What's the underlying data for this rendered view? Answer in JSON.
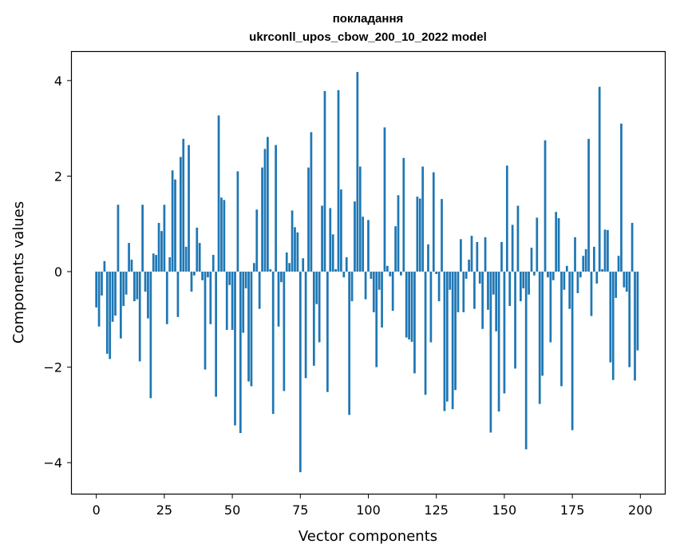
{
  "chart_data": {
    "type": "bar",
    "title": [
      "покладання",
      "ukrconll_upos_cbow_200_10_2022 model"
    ],
    "xlabel": "Vector components",
    "ylabel": "Components values",
    "xlim": [
      -9,
      209
    ],
    "ylim": [
      -4.65,
      4.6
    ],
    "xticks": [
      0,
      25,
      50,
      75,
      100,
      125,
      150,
      175,
      200
    ],
    "yticks": [
      -4,
      -2,
      0,
      2,
      4
    ],
    "ytick_labels": [
      "−4",
      "−2",
      "0",
      "2",
      "4"
    ],
    "grid": false,
    "legend": "none",
    "bar_color": "#1f77b4",
    "x": [
      0,
      1,
      2,
      3,
      4,
      5,
      6,
      7,
      8,
      9,
      10,
      11,
      12,
      13,
      14,
      15,
      16,
      17,
      18,
      19,
      20,
      21,
      22,
      23,
      24,
      25,
      26,
      27,
      28,
      29,
      30,
      31,
      32,
      33,
      34,
      35,
      36,
      37,
      38,
      39,
      40,
      41,
      42,
      43,
      44,
      45,
      46,
      47,
      48,
      49,
      50,
      51,
      52,
      53,
      54,
      55,
      56,
      57,
      58,
      59,
      60,
      61,
      62,
      63,
      64,
      65,
      66,
      67,
      68,
      69,
      70,
      71,
      72,
      73,
      74,
      75,
      76,
      77,
      78,
      79,
      80,
      81,
      82,
      83,
      84,
      85,
      86,
      87,
      88,
      89,
      90,
      91,
      92,
      93,
      94,
      95,
      96,
      97,
      98,
      99,
      100,
      101,
      102,
      103,
      104,
      105,
      106,
      107,
      108,
      109,
      110,
      111,
      112,
      113,
      114,
      115,
      116,
      117,
      118,
      119,
      120,
      121,
      122,
      123,
      124,
      125,
      126,
      127,
      128,
      129,
      130,
      131,
      132,
      133,
      134,
      135,
      136,
      137,
      138,
      139,
      140,
      141,
      142,
      143,
      144,
      145,
      146,
      147,
      148,
      149,
      150,
      151,
      152,
      153,
      154,
      155,
      156,
      157,
      158,
      159,
      160,
      161,
      162,
      163,
      164,
      165,
      166,
      167,
      168,
      169,
      170,
      171,
      172,
      173,
      174,
      175,
      176,
      177,
      178,
      179,
      180,
      181,
      182,
      183,
      184,
      185,
      186,
      187,
      188,
      189,
      190,
      191,
      192,
      193,
      194,
      195,
      196,
      197,
      198,
      199
    ],
    "values": [
      -0.75,
      -1.15,
      -0.5,
      0.22,
      -1.72,
      -1.83,
      -1.05,
      -0.92,
      1.4,
      -1.4,
      -0.72,
      -0.48,
      0.6,
      0.25,
      -0.62,
      -0.58,
      -1.88,
      1.4,
      -0.42,
      -0.98,
      -2.65,
      0.38,
      0.35,
      1.02,
      0.85,
      1.4,
      -1.1,
      0.3,
      2.12,
      1.93,
      -0.95,
      2.4,
      2.78,
      0.52,
      2.65,
      -0.42,
      -0.08,
      0.92,
      0.6,
      -0.18,
      -2.05,
      -0.12,
      -1.1,
      0.35,
      -2.62,
      3.27,
      1.55,
      1.5,
      -1.22,
      -0.28,
      -1.22,
      -3.22,
      2.1,
      -3.38,
      -1.28,
      -0.35,
      -2.3,
      -2.4,
      0.18,
      1.3,
      -0.78,
      2.18,
      2.57,
      2.82,
      0.05,
      -2.98,
      2.65,
      -1.15,
      -0.22,
      -2.5,
      0.4,
      0.18,
      1.28,
      0.93,
      0.82,
      -4.2,
      0.28,
      -2.23,
      2.18,
      2.92,
      -1.97,
      -0.68,
      -1.48,
      1.38,
      3.78,
      -2.52,
      1.33,
      0.78,
      0.05,
      3.8,
      1.72,
      -0.12,
      0.3,
      -3.0,
      -0.62,
      1.47,
      4.18,
      2.2,
      1.15,
      -0.58,
      1.08,
      -0.15,
      -0.85,
      -2.0,
      -0.38,
      -1.17,
      3.02,
      0.12,
      -0.1,
      -0.82,
      0.95,
      1.6,
      -0.08,
      2.38,
      -1.38,
      -1.42,
      -1.47,
      -2.13,
      1.57,
      1.53,
      2.2,
      -2.58,
      0.57,
      -1.48,
      2.08,
      -0.05,
      -0.62,
      1.52,
      -2.92,
      -2.72,
      -0.38,
      -2.88,
      -2.48,
      -0.85,
      0.68,
      -0.85,
      -0.15,
      0.25,
      0.75,
      -0.78,
      0.62,
      -0.25,
      -1.2,
      0.72,
      -0.8,
      -3.37,
      -0.48,
      -1.25,
      -2.93,
      0.62,
      -2.55,
      2.22,
      -0.72,
      0.98,
      -2.03,
      1.38,
      -0.62,
      -0.35,
      -3.72,
      -0.48,
      0.5,
      -0.08,
      1.13,
      -2.77,
      -2.18,
      2.75,
      -0.12,
      -1.48,
      -0.18,
      1.25,
      1.12,
      -2.4,
      -0.38,
      0.12,
      -0.78,
      -3.32,
      0.72,
      -0.45,
      -0.12,
      0.33,
      0.47,
      2.78,
      -0.93,
      0.52,
      -0.25,
      3.87,
      0.05,
      0.88,
      0.87,
      -1.9,
      -2.27,
      -0.55,
      0.33,
      3.1,
      -0.33,
      -0.42,
      -2.0,
      1.02,
      -2.28,
      -1.65
    ]
  }
}
